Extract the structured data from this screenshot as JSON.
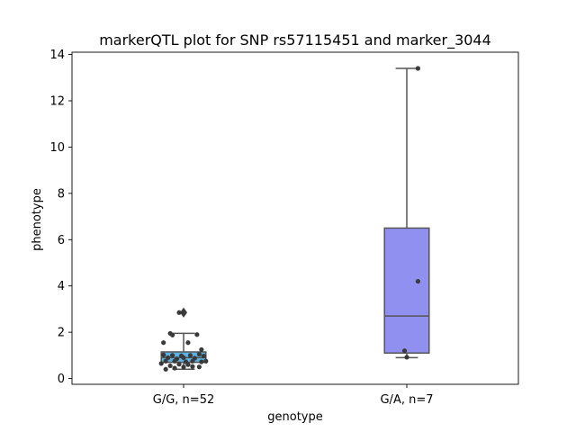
{
  "chart_data": {
    "type": "box",
    "title": "markerQTL plot for SNP rs57115451 and marker_3044",
    "xlabel": "genotype",
    "ylabel": "phenotype",
    "ylim": [
      -0.25,
      14.1
    ],
    "yticks": [
      0,
      2,
      4,
      6,
      8,
      10,
      12,
      14
    ],
    "grid": false,
    "categories": [
      "G/G, n=52",
      "G/A, n=7"
    ],
    "colors": [
      "#5ab4e6",
      "#9090f0"
    ],
    "boxes": [
      {
        "label": "G/G, n=52",
        "whisker_low": 0.4,
        "q1": 0.7,
        "median": 0.9,
        "q3": 1.15,
        "whisker_high": 1.95,
        "outliers": [
          2.85
        ],
        "points": [
          {
            "dx": -0.02,
            "y": 2.85
          },
          {
            "dx": -0.06,
            "y": 1.95
          },
          {
            "dx": -0.05,
            "y": 1.88
          },
          {
            "dx": 0.06,
            "y": 1.9
          },
          {
            "dx": -0.09,
            "y": 1.55
          },
          {
            "dx": 0.02,
            "y": 1.55
          },
          {
            "dx": 0.08,
            "y": 1.25
          },
          {
            "dx": -0.09,
            "y": 1.02
          },
          {
            "dx": -0.05,
            "y": 1.0
          },
          {
            "dx": -0.01,
            "y": 0.98
          },
          {
            "dx": 0.03,
            "y": 1.0
          },
          {
            "dx": 0.07,
            "y": 1.05
          },
          {
            "dx": 0.09,
            "y": 0.97
          },
          {
            "dx": -0.07,
            "y": 0.9
          },
          {
            "dx": 0.0,
            "y": 0.9
          },
          {
            "dx": 0.05,
            "y": 0.88
          },
          {
            "dx": -0.03,
            "y": 0.85
          },
          {
            "dx": -0.08,
            "y": 0.75
          },
          {
            "dx": -0.04,
            "y": 0.75
          },
          {
            "dx": 0.01,
            "y": 0.72
          },
          {
            "dx": 0.04,
            "y": 0.75
          },
          {
            "dx": 0.08,
            "y": 0.72
          },
          {
            "dx": 0.1,
            "y": 0.75
          },
          {
            "dx": -0.1,
            "y": 0.65
          },
          {
            "dx": -0.02,
            "y": 0.62
          },
          {
            "dx": 0.02,
            "y": 0.6
          },
          {
            "dx": -0.06,
            "y": 0.55
          },
          {
            "dx": 0.0,
            "y": 0.5
          },
          {
            "dx": 0.04,
            "y": 0.52
          },
          {
            "dx": 0.07,
            "y": 0.5
          },
          {
            "dx": -0.04,
            "y": 0.45
          },
          {
            "dx": -0.08,
            "y": 0.4
          }
        ]
      },
      {
        "label": "G/A, n=7",
        "whisker_low": 0.9,
        "q1": 1.1,
        "median": 2.7,
        "q3": 6.5,
        "whisker_high": 13.4,
        "outliers": [],
        "points": [
          {
            "dx": 0.05,
            "y": 13.4
          },
          {
            "dx": 0.05,
            "y": 4.2
          },
          {
            "dx": -0.01,
            "y": 1.2
          },
          {
            "dx": 0.0,
            "y": 0.92
          }
        ]
      }
    ]
  }
}
